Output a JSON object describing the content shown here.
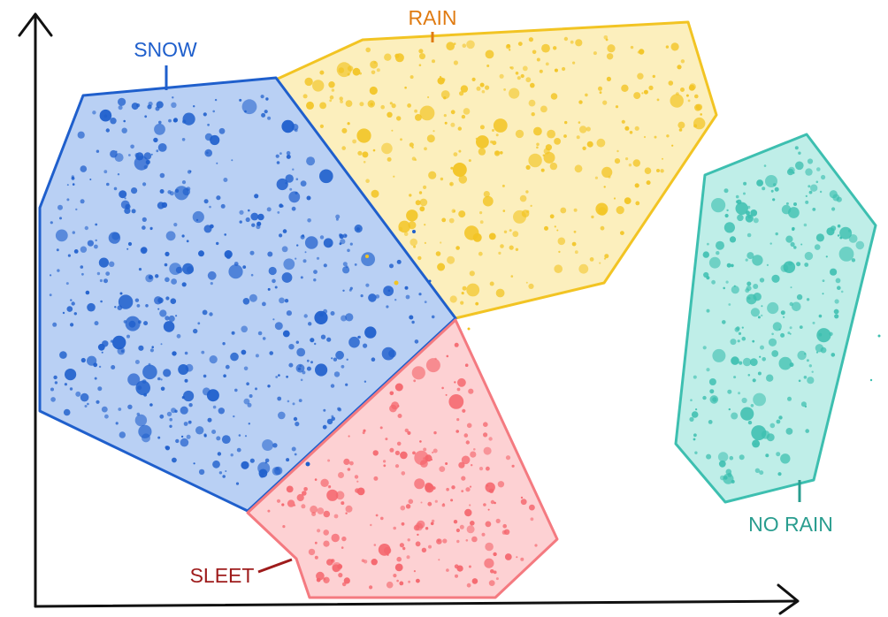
{
  "chart_data": {
    "type": "scatter",
    "title": "",
    "xlabel": "",
    "ylabel": "",
    "grid": false,
    "clusters": [
      {
        "key": "snow",
        "label": "SNOW",
        "color": "#1f5fcc",
        "fill": "#b9d0f4"
      },
      {
        "key": "rain",
        "label": "RAIN",
        "color": "#f2c423",
        "fill": "#fcefbd",
        "label_color": "#e07b12"
      },
      {
        "key": "sleet",
        "label": "SLEET",
        "color": "#f47a80",
        "fill": "#fdd1d3",
        "label_color": "#9e1b1b"
      },
      {
        "key": "norain",
        "label": "NO RAIN",
        "color": "#3dbfb0",
        "fill": "#bfeee8",
        "label_color": "#2a9d8f"
      }
    ]
  }
}
